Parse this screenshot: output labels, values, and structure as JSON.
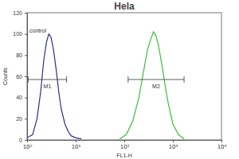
{
  "chart_data": {
    "type": "line",
    "title": "Hela",
    "x_label": "FL1-H",
    "y_label": "Counts",
    "log": "x",
    "xlim": [
      1,
      10000
    ],
    "xticks": [
      {
        "value": 1,
        "label": "10⁰"
      },
      {
        "value": 10,
        "label": "10¹"
      },
      {
        "value": 100,
        "label": "10²"
      },
      {
        "value": 1000,
        "label": "10³"
      },
      {
        "value": 10000,
        "label": "10⁴"
      }
    ],
    "ylim": [
      0,
      120
    ],
    "yticks": [
      0,
      20,
      40,
      60,
      80,
      100,
      120
    ],
    "series": [
      {
        "name": "control",
        "color": "#2b2f8f",
        "x": [
          1.0,
          1.3,
          1.6,
          1.9,
          2.2,
          2.5,
          2.8,
          3.1,
          3.5,
          4,
          4.5,
          5,
          6,
          7,
          8,
          10,
          13
        ],
        "values": [
          2,
          5,
          20,
          45,
          75,
          92,
          100,
          97,
          85,
          65,
          45,
          30,
          15,
          8,
          4,
          2,
          1
        ]
      },
      {
        "color": "#3cbf3c",
        "x": [
          80,
          110,
          150,
          200,
          250,
          300,
          350,
          400,
          450,
          500,
          600,
          700,
          800,
          1000,
          1300,
          1700
        ],
        "values": [
          1,
          5,
          18,
          40,
          65,
          85,
          95,
          102,
          98,
          90,
          70,
          50,
          35,
          15,
          5,
          1
        ]
      }
    ],
    "annotations": [
      {
        "text": "M1",
        "x": [
          1.05,
          6.5
        ],
        "y": 57
      },
      {
        "text": "M2",
        "x": [
          120,
          1700
        ],
        "y": 57
      }
    ]
  }
}
